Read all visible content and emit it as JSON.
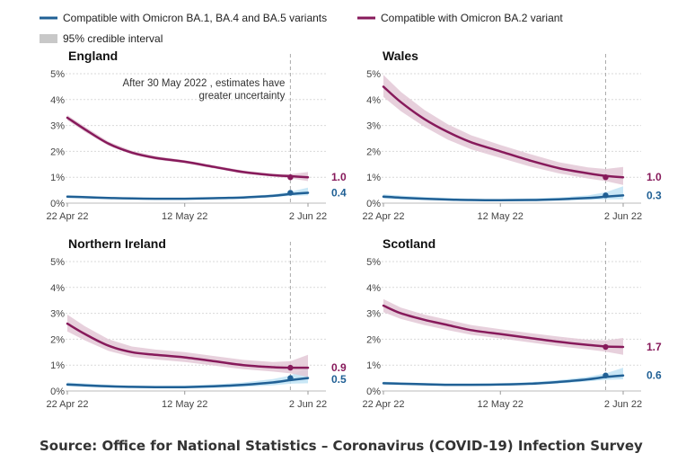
{
  "legend": {
    "items": [
      {
        "label": "Compatible with Omicron BA.1, BA.4 and BA.5 variants",
        "color": "#206095",
        "kind": "line"
      },
      {
        "label": "Compatible with Omicron BA.2 variant",
        "color": "#871A5B",
        "kind": "line"
      },
      {
        "label": "95% credible interval",
        "color": "#c8c8c8",
        "kind": "box"
      }
    ]
  },
  "source": "Source: Office for National Statistics – Coronavirus (COVID-19) Infection Survey",
  "chart_data": [
    {
      "type": "line",
      "title": "England",
      "x_dates": [
        "22 Apr",
        "25 Apr",
        "29 Apr",
        "3 May",
        "7 May",
        "12 May",
        "17 May",
        "22 May",
        "27 May",
        "30 May",
        "2 Jun"
      ],
      "x_ticks": [
        "22 Apr 22",
        "12 May 22",
        "2 Jun 22"
      ],
      "y_ticks": [
        "0%",
        "1%",
        "2%",
        "3%",
        "4%",
        "5%"
      ],
      "ylim": [
        0,
        5
      ],
      "reference_line": "30 May 22",
      "annotation": [
        "After 30 May 2022 , estimates have",
        "greater uncertainty"
      ],
      "series": [
        {
          "name": "Compatible with Omicron BA.1, BA.4 and BA.5 variants",
          "color": "#206095",
          "band_color": "#bfe3f5",
          "values": [
            0.25,
            0.23,
            0.2,
            0.18,
            0.17,
            0.17,
            0.19,
            0.22,
            0.28,
            0.35,
            0.4
          ],
          "lower": [
            0.2,
            0.19,
            0.17,
            0.15,
            0.14,
            0.14,
            0.16,
            0.18,
            0.23,
            0.28,
            0.3
          ],
          "upper": [
            0.3,
            0.28,
            0.24,
            0.21,
            0.2,
            0.2,
            0.23,
            0.27,
            0.34,
            0.44,
            0.6
          ],
          "end_label": "0.4"
        },
        {
          "name": "Compatible with Omicron BA.2 variant",
          "color": "#871A5B",
          "band_color": "#e3c8d6",
          "values": [
            3.3,
            2.85,
            2.3,
            1.95,
            1.75,
            1.6,
            1.4,
            1.2,
            1.08,
            1.04,
            1.0
          ],
          "lower": [
            3.2,
            2.75,
            2.22,
            1.88,
            1.68,
            1.54,
            1.34,
            1.14,
            1.02,
            0.96,
            0.85
          ],
          "upper": [
            3.4,
            2.95,
            2.38,
            2.02,
            1.82,
            1.66,
            1.46,
            1.26,
            1.14,
            1.12,
            1.2
          ],
          "end_label": "1.0"
        }
      ]
    },
    {
      "type": "line",
      "title": "Wales",
      "x_dates": [
        "22 Apr",
        "25 Apr",
        "29 Apr",
        "3 May",
        "7 May",
        "12 May",
        "17 May",
        "22 May",
        "27 May",
        "30 May",
        "2 Jun"
      ],
      "x_ticks": [
        "22 Apr 22",
        "12 May 22",
        "2 Jun 22"
      ],
      "y_ticks": [
        "0%",
        "1%",
        "2%",
        "3%",
        "4%",
        "5%"
      ],
      "ylim": [
        0,
        5
      ],
      "reference_line": "30 May 22",
      "series": [
        {
          "name": "Compatible with Omicron BA.1, BA.4 and BA.5 variants",
          "color": "#206095",
          "band_color": "#bfe3f5",
          "values": [
            0.25,
            0.21,
            0.17,
            0.14,
            0.12,
            0.11,
            0.12,
            0.15,
            0.2,
            0.25,
            0.3
          ],
          "lower": [
            0.18,
            0.15,
            0.12,
            0.1,
            0.08,
            0.07,
            0.08,
            0.1,
            0.13,
            0.15,
            0.15
          ],
          "upper": [
            0.34,
            0.29,
            0.24,
            0.2,
            0.17,
            0.16,
            0.18,
            0.22,
            0.3,
            0.42,
            0.65
          ],
          "end_label": "0.3"
        },
        {
          "name": "Compatible with Omicron BA.2 variant",
          "color": "#871A5B",
          "band_color": "#e3c8d6",
          "values": [
            4.5,
            3.9,
            3.25,
            2.75,
            2.35,
            2.0,
            1.65,
            1.35,
            1.15,
            1.05,
            1.0
          ],
          "lower": [
            4.1,
            3.55,
            2.95,
            2.45,
            2.08,
            1.75,
            1.42,
            1.15,
            0.95,
            0.85,
            0.7
          ],
          "upper": [
            4.95,
            4.3,
            3.6,
            3.05,
            2.62,
            2.25,
            1.9,
            1.58,
            1.38,
            1.32,
            1.4
          ],
          "end_label": "1.0"
        }
      ]
    },
    {
      "type": "line",
      "title": "Northern Ireland",
      "x_dates": [
        "22 Apr",
        "25 Apr",
        "29 Apr",
        "3 May",
        "7 May",
        "12 May",
        "17 May",
        "22 May",
        "27 May",
        "30 May",
        "2 Jun"
      ],
      "x_ticks": [
        "22 Apr 22",
        "12 May 22",
        "2 Jun 22"
      ],
      "y_ticks": [
        "0%",
        "1%",
        "2%",
        "3%",
        "4%",
        "5%"
      ],
      "ylim": [
        0,
        5
      ],
      "reference_line": "30 May 22",
      "series": [
        {
          "name": "Compatible with Omicron BA.1, BA.4 and BA.5 variants",
          "color": "#206095",
          "band_color": "#bfe3f5",
          "values": [
            0.25,
            0.22,
            0.18,
            0.16,
            0.15,
            0.15,
            0.18,
            0.24,
            0.33,
            0.42,
            0.5
          ],
          "lower": [
            0.18,
            0.16,
            0.13,
            0.11,
            0.1,
            0.1,
            0.12,
            0.16,
            0.22,
            0.28,
            0.3
          ],
          "upper": [
            0.33,
            0.29,
            0.24,
            0.21,
            0.2,
            0.21,
            0.25,
            0.33,
            0.46,
            0.6,
            0.9
          ],
          "end_label": "0.5"
        },
        {
          "name": "Compatible with Omicron BA.2 variant",
          "color": "#871A5B",
          "band_color": "#e3c8d6",
          "values": [
            2.6,
            2.2,
            1.75,
            1.5,
            1.4,
            1.3,
            1.15,
            1.0,
            0.92,
            0.9,
            0.9
          ],
          "lower": [
            2.3,
            1.95,
            1.55,
            1.32,
            1.22,
            1.12,
            0.98,
            0.84,
            0.75,
            0.68,
            0.55
          ],
          "upper": [
            2.95,
            2.5,
            2.0,
            1.72,
            1.6,
            1.5,
            1.35,
            1.2,
            1.12,
            1.15,
            1.4
          ],
          "end_label": "0.9"
        }
      ]
    },
    {
      "type": "line",
      "title": "Scotland",
      "x_dates": [
        "22 Apr",
        "25 Apr",
        "29 Apr",
        "3 May",
        "7 May",
        "12 May",
        "17 May",
        "22 May",
        "27 May",
        "30 May",
        "2 Jun"
      ],
      "x_ticks": [
        "22 Apr 22",
        "12 May 22",
        "2 Jun 22"
      ],
      "y_ticks": [
        "0%",
        "1%",
        "2%",
        "3%",
        "4%",
        "5%"
      ],
      "ylim": [
        0,
        5
      ],
      "reference_line": "30 May 22",
      "series": [
        {
          "name": "Compatible with Omicron BA.1, BA.4 and BA.5 variants",
          "color": "#206095",
          "band_color": "#bfe3f5",
          "values": [
            0.3,
            0.28,
            0.26,
            0.24,
            0.24,
            0.25,
            0.28,
            0.35,
            0.45,
            0.54,
            0.6
          ],
          "lower": [
            0.25,
            0.23,
            0.21,
            0.2,
            0.2,
            0.21,
            0.23,
            0.29,
            0.37,
            0.43,
            0.45
          ],
          "upper": [
            0.36,
            0.33,
            0.31,
            0.29,
            0.29,
            0.3,
            0.34,
            0.42,
            0.55,
            0.68,
            0.9
          ],
          "end_label": "0.6"
        },
        {
          "name": "Compatible with Omicron BA.2 variant",
          "color": "#871A5B",
          "band_color": "#e3c8d6",
          "values": [
            3.3,
            3.0,
            2.75,
            2.55,
            2.35,
            2.2,
            2.05,
            1.9,
            1.78,
            1.72,
            1.7
          ],
          "lower": [
            3.05,
            2.78,
            2.55,
            2.35,
            2.17,
            2.03,
            1.88,
            1.73,
            1.6,
            1.52,
            1.4
          ],
          "upper": [
            3.55,
            3.22,
            2.95,
            2.75,
            2.55,
            2.39,
            2.24,
            2.1,
            1.98,
            1.95,
            2.05
          ],
          "end_label": "1.7"
        }
      ]
    }
  ]
}
